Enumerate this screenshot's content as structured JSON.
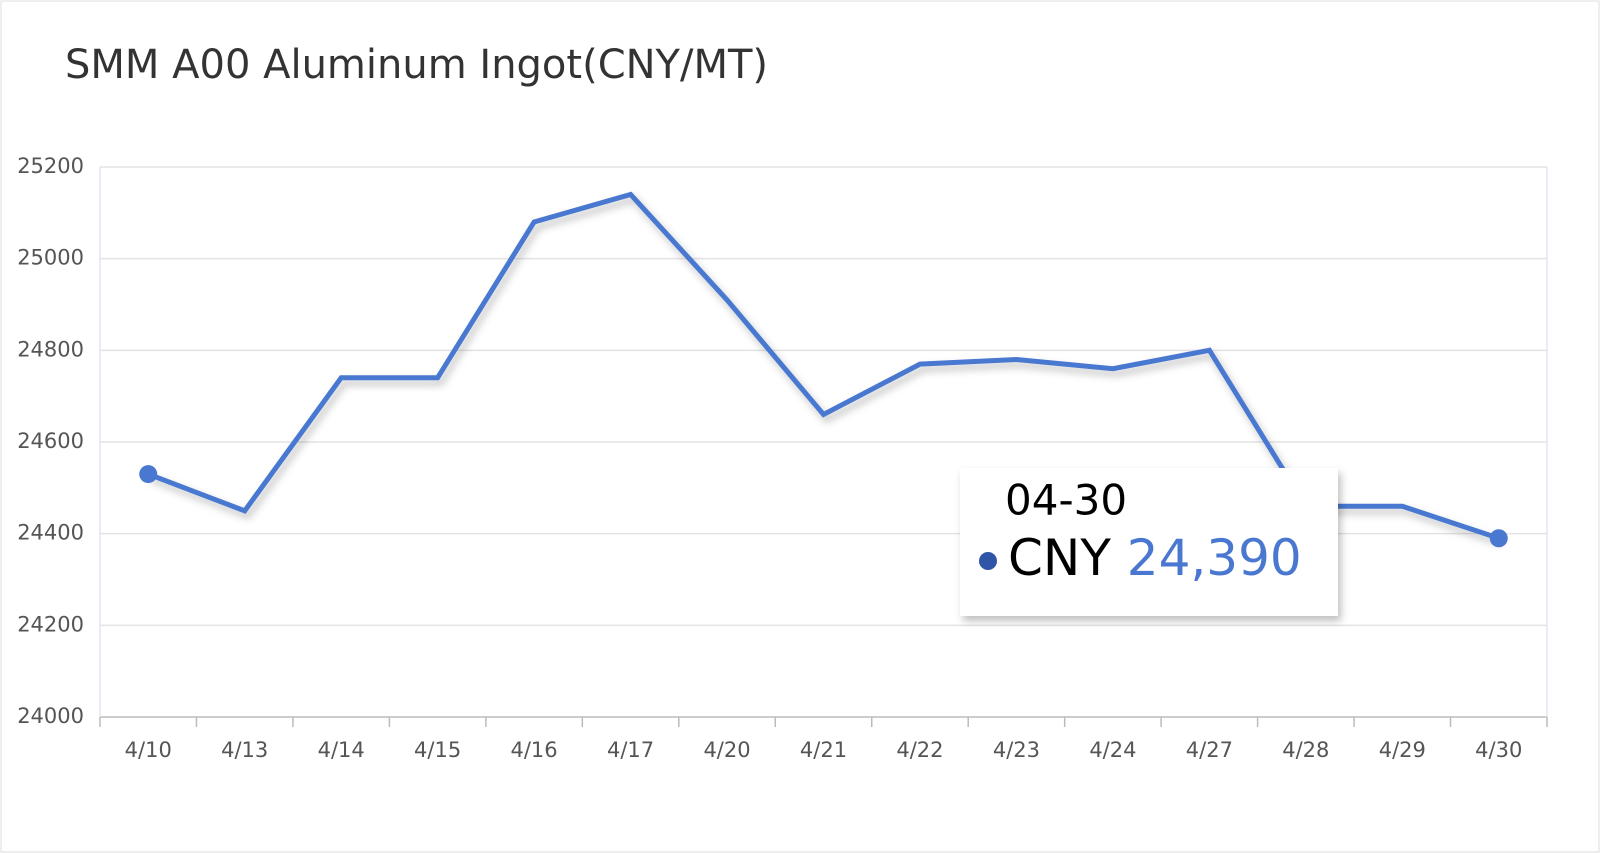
{
  "chart_data": {
    "type": "line",
    "title": "SMM A00 Aluminum Ingot(CNY/MT)",
    "categories": [
      "4/10",
      "4/13",
      "4/14",
      "4/15",
      "4/16",
      "4/17",
      "4/20",
      "4/21",
      "4/22",
      "4/23",
      "4/24",
      "4/27",
      "4/28",
      "4/29",
      "4/30"
    ],
    "series": [
      {
        "name": "CNY",
        "color": "#4a78d0",
        "values": [
          24530,
          24450,
          24740,
          24740,
          25080,
          25140,
          24910,
          24660,
          24770,
          24780,
          24760,
          24800,
          24460,
          24460,
          24390
        ]
      }
    ],
    "ylim": [
      24000,
      25200
    ],
    "yticks": [
      24000,
      24200,
      24400,
      24600,
      24800,
      25000,
      25200
    ],
    "grid": true,
    "tooltip": {
      "date": "04-30",
      "series": "CNY",
      "value_label": "24,390"
    }
  }
}
